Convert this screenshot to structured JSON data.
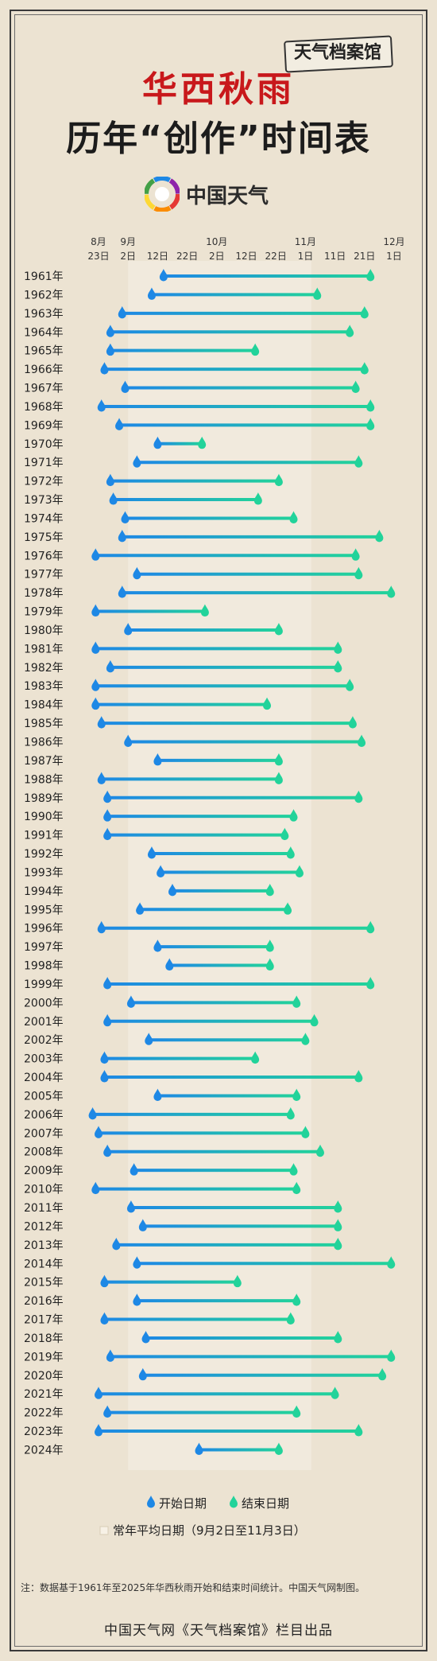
{
  "header": {
    "brand_tag": "天气档案馆",
    "title_line1": "华西秋雨",
    "title_line2": "历年“创作”时间表",
    "logo_text": "中国天气"
  },
  "legend": {
    "start_label": "开始日期",
    "end_label": "结束日期",
    "average_label": "常年平均日期（9月2日至11月3日）"
  },
  "footer": {
    "note": "注：数据基于1961年至2025年华西秋雨开始和结束时间统计。中国天气网制图。",
    "credit": "中国天气网《天气档案馆》栏目出品"
  },
  "colors": {
    "start": "#1e88e5",
    "end": "#22d39a",
    "title_red": "#c8181b",
    "average_band": "#f3ece0"
  },
  "chart_data": {
    "type": "range-bar",
    "title": "华西秋雨 历年“创作”时间表",
    "x_tick_labels": [
      {
        "top": "8月",
        "bottom": "23日",
        "value": "08-23"
      },
      {
        "top": "9月",
        "bottom": "2日",
        "value": "09-02"
      },
      {
        "top": "",
        "bottom": "12日",
        "value": "09-12"
      },
      {
        "top": "",
        "bottom": "22日",
        "value": "09-22"
      },
      {
        "top": "10月",
        "bottom": "2日",
        "value": "10-02"
      },
      {
        "top": "",
        "bottom": "12日",
        "value": "10-12"
      },
      {
        "top": "",
        "bottom": "22日",
        "value": "10-22"
      },
      {
        "top": "11月",
        "bottom": "1日",
        "value": "11-01"
      },
      {
        "top": "",
        "bottom": "11日",
        "value": "11-11"
      },
      {
        "top": "",
        "bottom": "21日",
        "value": "11-21"
      },
      {
        "top": "12月",
        "bottom": "1日",
        "value": "12-01"
      }
    ],
    "x_range": [
      "08-23",
      "12-01"
    ],
    "average_range": [
      "09-02",
      "11-03"
    ],
    "series": [
      {
        "name": "开始日期",
        "field": "start"
      },
      {
        "name": "结束日期",
        "field": "end"
      }
    ],
    "rows": [
      {
        "year": "1961年",
        "start": "09-14",
        "end": "11-23"
      },
      {
        "year": "1962年",
        "start": "09-10",
        "end": "11-05"
      },
      {
        "year": "1963年",
        "start": "08-31",
        "end": "11-21"
      },
      {
        "year": "1964年",
        "start": "08-27",
        "end": "11-16"
      },
      {
        "year": "1965年",
        "start": "08-27",
        "end": "10-15"
      },
      {
        "year": "1966年",
        "start": "08-25",
        "end": "11-21"
      },
      {
        "year": "1967年",
        "start": "09-01",
        "end": "11-18"
      },
      {
        "year": "1968年",
        "start": "08-24",
        "end": "11-23"
      },
      {
        "year": "1969年",
        "start": "08-30",
        "end": "11-23"
      },
      {
        "year": "1970年",
        "start": "09-12",
        "end": "09-27"
      },
      {
        "year": "1971年",
        "start": "09-05",
        "end": "11-19"
      },
      {
        "year": "1972年",
        "start": "08-27",
        "end": "10-23"
      },
      {
        "year": "1973年",
        "start": "08-28",
        "end": "10-16"
      },
      {
        "year": "1974年",
        "start": "09-01",
        "end": "10-28"
      },
      {
        "year": "1975年",
        "start": "08-31",
        "end": "11-26"
      },
      {
        "year": "1976年",
        "start": "08-22",
        "end": "11-18"
      },
      {
        "year": "1977年",
        "start": "09-05",
        "end": "11-19"
      },
      {
        "year": "1978年",
        "start": "08-31",
        "end": "11-30"
      },
      {
        "year": "1979年",
        "start": "08-22",
        "end": "09-28"
      },
      {
        "year": "1980年",
        "start": "09-02",
        "end": "10-23"
      },
      {
        "year": "1981年",
        "start": "08-22",
        "end": "11-12"
      },
      {
        "year": "1982年",
        "start": "08-27",
        "end": "11-12"
      },
      {
        "year": "1983年",
        "start": "08-22",
        "end": "11-16"
      },
      {
        "year": "1984年",
        "start": "08-22",
        "end": "10-19"
      },
      {
        "year": "1985年",
        "start": "08-24",
        "end": "11-17"
      },
      {
        "year": "1986年",
        "start": "09-02",
        "end": "11-20"
      },
      {
        "year": "1987年",
        "start": "09-12",
        "end": "10-23"
      },
      {
        "year": "1988年",
        "start": "08-24",
        "end": "10-23"
      },
      {
        "year": "1989年",
        "start": "08-26",
        "end": "11-19"
      },
      {
        "year": "1990年",
        "start": "08-26",
        "end": "10-28"
      },
      {
        "year": "1991年",
        "start": "08-26",
        "end": "10-25"
      },
      {
        "year": "1992年",
        "start": "09-10",
        "end": "10-27"
      },
      {
        "year": "1993年",
        "start": "09-13",
        "end": "10-30"
      },
      {
        "year": "1994年",
        "start": "09-17",
        "end": "10-20"
      },
      {
        "year": "1995年",
        "start": "09-06",
        "end": "10-26"
      },
      {
        "year": "1996年",
        "start": "08-24",
        "end": "11-23"
      },
      {
        "year": "1997年",
        "start": "09-12",
        "end": "10-20"
      },
      {
        "year": "1998年",
        "start": "09-16",
        "end": "10-20"
      },
      {
        "year": "1999年",
        "start": "08-26",
        "end": "11-23"
      },
      {
        "year": "2000年",
        "start": "09-03",
        "end": "10-29"
      },
      {
        "year": "2001年",
        "start": "08-26",
        "end": "11-04"
      },
      {
        "year": "2002年",
        "start": "09-09",
        "end": "11-01"
      },
      {
        "year": "2003年",
        "start": "08-25",
        "end": "10-15"
      },
      {
        "year": "2004年",
        "start": "08-25",
        "end": "11-19"
      },
      {
        "year": "2005年",
        "start": "09-12",
        "end": "10-29"
      },
      {
        "year": "2006年",
        "start": "08-21",
        "end": "10-27"
      },
      {
        "year": "2007年",
        "start": "08-23",
        "end": "11-01"
      },
      {
        "year": "2008年",
        "start": "08-26",
        "end": "11-06"
      },
      {
        "year": "2009年",
        "start": "09-04",
        "end": "10-28"
      },
      {
        "year": "2010年",
        "start": "08-22",
        "end": "10-29"
      },
      {
        "year": "2011年",
        "start": "09-03",
        "end": "11-12"
      },
      {
        "year": "2012年",
        "start": "09-07",
        "end": "11-12"
      },
      {
        "year": "2013年",
        "start": "08-29",
        "end": "11-12"
      },
      {
        "year": "2014年",
        "start": "09-05",
        "end": "11-30"
      },
      {
        "year": "2015年",
        "start": "08-25",
        "end": "10-09"
      },
      {
        "year": "2016年",
        "start": "09-05",
        "end": "10-29"
      },
      {
        "year": "2017年",
        "start": "08-25",
        "end": "10-27"
      },
      {
        "year": "2018年",
        "start": "09-08",
        "end": "11-12"
      },
      {
        "year": "2019年",
        "start": "08-27",
        "end": "11-30"
      },
      {
        "year": "2020年",
        "start": "09-07",
        "end": "11-27"
      },
      {
        "year": "2021年",
        "start": "08-23",
        "end": "11-11"
      },
      {
        "year": "2022年",
        "start": "08-26",
        "end": "10-29"
      },
      {
        "year": "2023年",
        "start": "08-23",
        "end": "11-19"
      },
      {
        "year": "2024年",
        "start": "09-26",
        "end": "10-23"
      }
    ]
  }
}
